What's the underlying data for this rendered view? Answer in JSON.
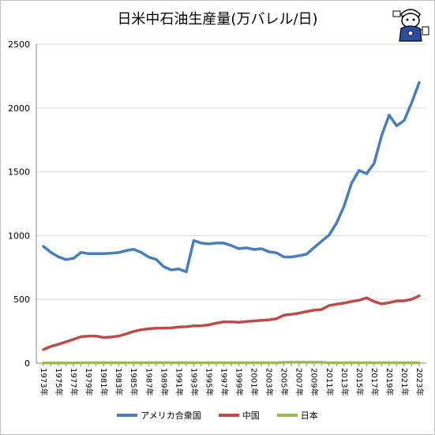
{
  "page": {
    "title": "日米中石油生産量(万バレル/日)"
  },
  "colors": {
    "usa": "#4a7ebb",
    "china": "#be4b48",
    "japan": "#98b954",
    "grid": "#d9d9d9",
    "axis": "#868686"
  },
  "chart_data": {
    "type": "line",
    "title": "日米中石油生産量(万バレル/日)",
    "xlabel": "",
    "ylabel": "",
    "ylim": [
      0,
      2500
    ],
    "yticks": [
      0,
      500,
      1000,
      1500,
      2000,
      2500
    ],
    "grid": true,
    "legend_position": "bottom",
    "x": [
      1973,
      1974,
      1975,
      1976,
      1977,
      1978,
      1979,
      1980,
      1981,
      1982,
      1983,
      1984,
      1985,
      1986,
      1987,
      1988,
      1989,
      1990,
      1991,
      1992,
      1993,
      1994,
      1995,
      1996,
      1997,
      1998,
      1999,
      2000,
      2001,
      2002,
      2003,
      2004,
      2005,
      2006,
      2007,
      2008,
      2009,
      2010,
      2011,
      2012,
      2013,
      2014,
      2015,
      2016,
      2017,
      2018,
      2019,
      2020,
      2021,
      2022,
      2023
    ],
    "xtick_labels": [
      "1973年",
      "1975年",
      "1977年",
      "1979年",
      "1981年",
      "1983年",
      "1985年",
      "1987年",
      "1989年",
      "1991年",
      "1993年",
      "1995年",
      "1997年",
      "1999年",
      "2001年",
      "2003年",
      "2005年",
      "2007年",
      "2009年",
      "2011年",
      "2013年",
      "2015年",
      "2017年",
      "2019年",
      "2021年",
      "2023年"
    ],
    "series": [
      {
        "name": "アメリカ合衆国",
        "color_key": "usa",
        "values": [
          915,
          868,
          833,
          812,
          822,
          868,
          858,
          858,
          858,
          862,
          867,
          882,
          893,
          868,
          831,
          814,
          757,
          731,
          738,
          716,
          961,
          941,
          935,
          941,
          941,
          922,
          897,
          904,
          891,
          897,
          873,
          865,
          832,
          832,
          842,
          854,
          905,
          955,
          1004,
          1098,
          1230,
          1410,
          1511,
          1485,
          1566,
          1784,
          1944,
          1860,
          1903,
          2042,
          2200
        ]
      },
      {
        "name": "中国",
        "color_key": "china",
        "values": [
          107,
          131,
          148,
          167,
          186,
          207,
          212,
          212,
          201,
          205,
          212,
          229,
          249,
          262,
          269,
          274,
          275,
          276,
          283,
          285,
          293,
          293,
          300,
          314,
          324,
          323,
          320,
          327,
          331,
          335,
          340,
          348,
          376,
          383,
          392,
          405,
          415,
          420,
          452,
          462,
          471,
          483,
          493,
          512,
          483,
          465,
          474,
          487,
          488,
          501,
          527
        ]
      },
      {
        "name": "日本",
        "color_key": "japan",
        "values": [
          2,
          2,
          2,
          2,
          2,
          3,
          3,
          3,
          3,
          3,
          3,
          3,
          3,
          3,
          4,
          4,
          4,
          4,
          4,
          4,
          3,
          3,
          3,
          3,
          3,
          3,
          3,
          3,
          3,
          3,
          3,
          3,
          6,
          7,
          7,
          7,
          7,
          7,
          3,
          3,
          3,
          3,
          3,
          3,
          3,
          3,
          3,
          3,
          3,
          3,
          3
        ]
      }
    ]
  }
}
